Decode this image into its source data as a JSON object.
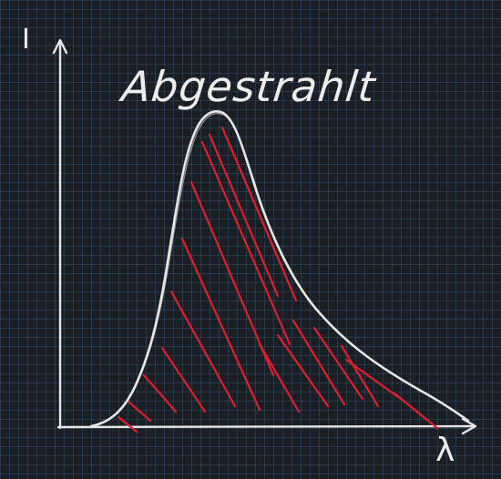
{
  "diagram": {
    "title": "Abgestrahlt",
    "y_axis_label": "I",
    "x_axis_label": "λ"
  },
  "colors": {
    "background": "#1b1e23",
    "grid": "#3a5a78",
    "chalk": "#e6e6e6",
    "hatch": "#e01e2e"
  }
}
